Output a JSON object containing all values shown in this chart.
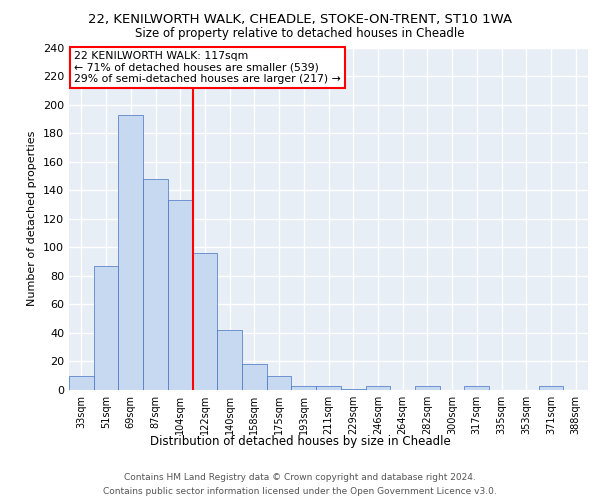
{
  "title_line1": "22, KENILWORTH WALK, CHEADLE, STOKE-ON-TRENT, ST10 1WA",
  "title_line2": "Size of property relative to detached houses in Cheadle",
  "xlabel": "Distribution of detached houses by size in Cheadle",
  "ylabel": "Number of detached properties",
  "categories": [
    "33sqm",
    "51sqm",
    "69sqm",
    "87sqm",
    "104sqm",
    "122sqm",
    "140sqm",
    "158sqm",
    "175sqm",
    "193sqm",
    "211sqm",
    "229sqm",
    "246sqm",
    "264sqm",
    "282sqm",
    "300sqm",
    "317sqm",
    "335sqm",
    "353sqm",
    "371sqm",
    "388sqm"
  ],
  "values": [
    10,
    87,
    193,
    148,
    133,
    96,
    42,
    18,
    10,
    3,
    3,
    1,
    3,
    0,
    3,
    0,
    3,
    0,
    0,
    3,
    0
  ],
  "bar_color": "#c6d9f1",
  "bar_edge_color": "#4472c4",
  "vline_x": 4.5,
  "annotation_text": "22 KENILWORTH WALK: 117sqm\n← 71% of detached houses are smaller (539)\n29% of semi-detached houses are larger (217) →",
  "annotation_box_color": "#ffffff",
  "annotation_box_edge_color": "#ff0000",
  "vline_color": "#ff0000",
  "footer_line1": "Contains HM Land Registry data © Crown copyright and database right 2024.",
  "footer_line2": "Contains public sector information licensed under the Open Government Licence v3.0.",
  "ylim": [
    0,
    240
  ],
  "yticks": [
    0,
    20,
    40,
    60,
    80,
    100,
    120,
    140,
    160,
    180,
    200,
    220,
    240
  ],
  "background_color": "#e8eef6",
  "grid_color": "#ffffff",
  "fig_bg_color": "#ffffff"
}
